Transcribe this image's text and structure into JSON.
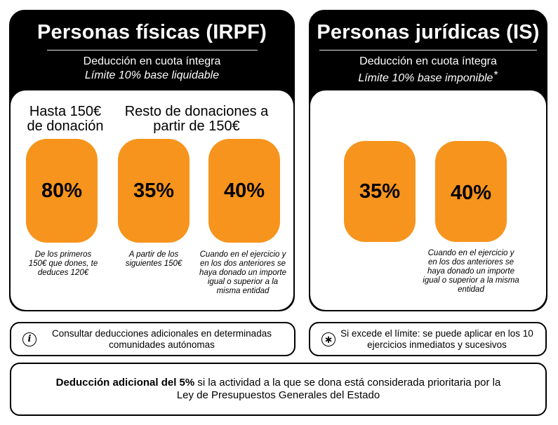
{
  "irpf": {
    "title": "Personas físicas (IRPF)",
    "subtitle": "Deducción en cuota íntegra",
    "limit": "Límite 10% base liquidable",
    "heading_1": "Hasta 150€ de donación",
    "heading_2": "Resto de donaciones a partir de 150€",
    "pills": [
      {
        "value": "80%",
        "note": "De los primeros 150€ que dones, te deduces 120€"
      },
      {
        "value": "35%",
        "note": "A partir de los siguientes 150€"
      },
      {
        "value": "40%",
        "note": "Cuando en el ejercicio y en los dos anteriores se haya donado un importe igual o superior a la misma entidad"
      }
    ]
  },
  "is": {
    "title": "Personas jurídicas (IS)",
    "subtitle": "Deducción en cuota íntegra",
    "limit": "Límite 10% base imponible",
    "asterisk": "*",
    "pills": [
      {
        "value": "35%",
        "note": ""
      },
      {
        "value": "40%",
        "note": "Cuando en el ejercicio y en los dos anteriores se haya donado un importe igual o superior a la misma entidad"
      }
    ]
  },
  "info_box": {
    "icon": "info-icon",
    "text": "Consultar deducciones adicionales en determinadas comunidades autónomas"
  },
  "asterisk_box": {
    "icon": "asterisk-icon",
    "text": "Si excede el límite: se puede aplicar en los 10 ejercicios inmediatos y sucesivos"
  },
  "bottom_box": {
    "bold": "Deducción adicional del 5%",
    "text": " si la actividad a la que se dona está considerada prioritaria por la Ley de Presupuestos Generales del Estado"
  },
  "colors": {
    "orange": "#f7941d",
    "black": "#000000",
    "white": "#ffffff"
  }
}
